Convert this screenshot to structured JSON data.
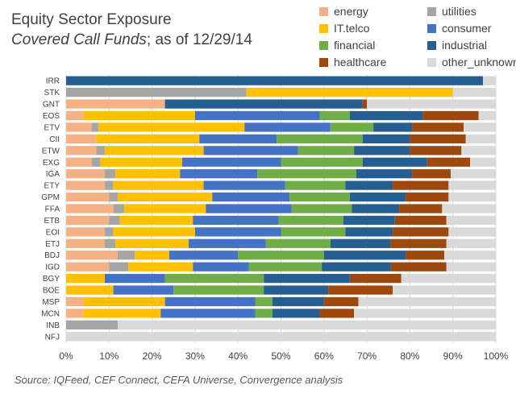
{
  "title": "Equity Sector Exposure",
  "subtitle_italic": "Covered Call Funds",
  "subtitle_rest": "; as of 12/29/14",
  "source": "Source:  IQFeed, CEF Connect, CEFA Universe, Convergence analysis",
  "colors": {
    "energy": "#F4B183",
    "utilities": "#A5A5A5",
    "IT.telco": "#FFC000",
    "consumer": "#4472C4",
    "financial": "#70AD47",
    "industrial": "#255E91",
    "healthcare": "#9E480E",
    "other_unknown": "#D9D9D9"
  },
  "chart_data": {
    "type": "bar",
    "orientation": "horizontal",
    "stacked": true,
    "title": "Equity Sector Exposure",
    "xlim": [
      0,
      100
    ],
    "x_ticks": [
      "0%",
      "10%",
      "20%",
      "30%",
      "40%",
      "50%",
      "60%",
      "70%",
      "80%",
      "90%",
      "100%"
    ],
    "grid": true,
    "legend_position": "top-right",
    "legend": [
      "energy",
      "utilities",
      "IT.telco",
      "consumer",
      "financial",
      "industrial",
      "healthcare",
      "other_unknown"
    ],
    "categories": [
      "IRR",
      "STK",
      "GNT",
      "EOS",
      "ETV",
      "CII",
      "ETW",
      "EXG",
      "IGA",
      "ETY",
      "GPM",
      "FFA",
      "ETB",
      "EOI",
      "ETJ",
      "BDJ",
      "IGD",
      "BGY",
      "BOE",
      "MSP",
      "MCN",
      "INB",
      "NFJ"
    ],
    "series": [
      {
        "name": "energy",
        "values": [
          0,
          0,
          23,
          4,
          6,
          7,
          7,
          6,
          9,
          9,
          10,
          11,
          10,
          9,
          9,
          12,
          10,
          0,
          0,
          4,
          4,
          0,
          0
        ]
      },
      {
        "name": "utilities",
        "values": [
          0,
          42,
          0,
          0,
          1.5,
          0,
          2,
          2,
          2.5,
          2,
          2,
          2.5,
          2.5,
          2,
          2.5,
          4,
          4.5,
          0,
          0,
          0,
          0,
          12,
          0
        ]
      },
      {
        "name": "IT.telco",
        "values": [
          0,
          48,
          0,
          26,
          34,
          24,
          23,
          19,
          15,
          21,
          22,
          19,
          17,
          19,
          17,
          8,
          15,
          9,
          11,
          19,
          18,
          0,
          0
        ]
      },
      {
        "name": "consumer",
        "values": [
          0,
          0,
          0,
          29,
          20,
          18,
          22,
          23,
          18,
          19,
          18,
          20,
          20,
          20,
          18,
          16,
          13,
          14,
          14,
          21,
          22,
          0,
          0
        ]
      },
      {
        "name": "financial",
        "values": [
          0,
          0,
          0,
          7,
          10,
          20,
          13,
          19,
          23,
          14,
          14,
          14,
          15,
          15,
          15,
          20,
          17,
          23,
          21,
          4,
          4,
          0,
          0
        ]
      },
      {
        "name": "industrial",
        "values": [
          97,
          0,
          46,
          17,
          9,
          11,
          13,
          15,
          13,
          11,
          13,
          11,
          12,
          11,
          14,
          19,
          16,
          20,
          15,
          12,
          11,
          0,
          0
        ]
      },
      {
        "name": "healthcare",
        "values": [
          0,
          0,
          1,
          13,
          12,
          13,
          12,
          10,
          9,
          13,
          10,
          10,
          12,
          13,
          13,
          9,
          13,
          12,
          15,
          8,
          8,
          0,
          0
        ]
      },
      {
        "name": "other_unknown",
        "values": [
          3,
          10,
          30,
          4,
          7.5,
          7,
          8,
          6,
          10.5,
          11,
          11,
          12.5,
          11.5,
          11,
          11.5,
          12,
          11.5,
          22,
          24,
          32,
          33,
          88,
          100
        ]
      }
    ]
  }
}
